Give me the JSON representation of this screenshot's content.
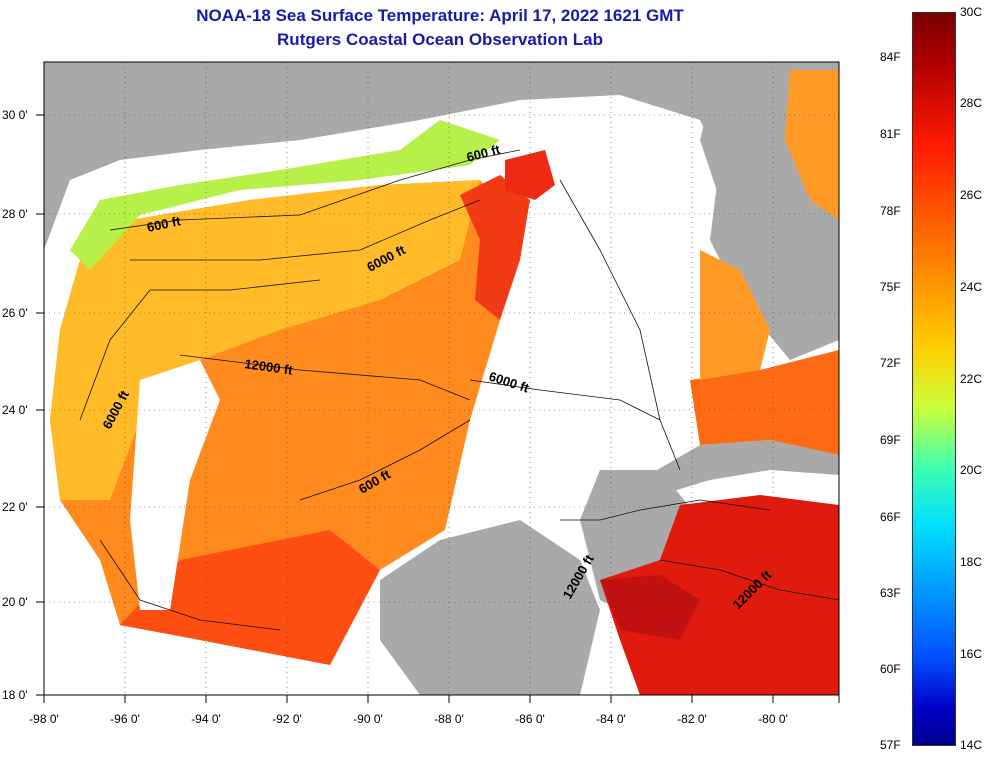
{
  "title": {
    "line1": "NOAA-18 Sea Surface Temperature:  April 17, 2022 1621 GMT",
    "line2": "Rutgers Coastal Ocean Observation Lab"
  },
  "latitude_labels": [
    "30 0'",
    "28 0'",
    "26 0'",
    "24 0'",
    "22 0'",
    "20 0'",
    "18 0'"
  ],
  "longitude_labels": [
    "-98 0'",
    "-96 0'",
    "-94 0'",
    "-92 0'",
    "-90 0'",
    "-88 0'",
    "-86 0'",
    "-84 0'",
    "-82 0'",
    "-80 0'"
  ],
  "contour_labels": [
    "600 ft",
    "600 ft",
    "6000 ft",
    "12000 ft",
    "6000 ft",
    "6000 ft",
    "600 ft",
    "12000 ft",
    "12000 ft"
  ],
  "colorbar": {
    "fahrenheit": [
      "84F",
      "81F",
      "78F",
      "75F",
      "72F",
      "69F",
      "66F",
      "63F",
      "60F",
      "57F"
    ],
    "celsius": [
      "30C",
      "28C",
      "26C",
      "24C",
      "22C",
      "20C",
      "18C",
      "16C",
      "14C"
    ],
    "range_celsius": [
      14,
      30
    ]
  },
  "colors": {
    "land": "#a9a9a9",
    "cloud": "#ffffff",
    "title": "#1a1aa8"
  }
}
